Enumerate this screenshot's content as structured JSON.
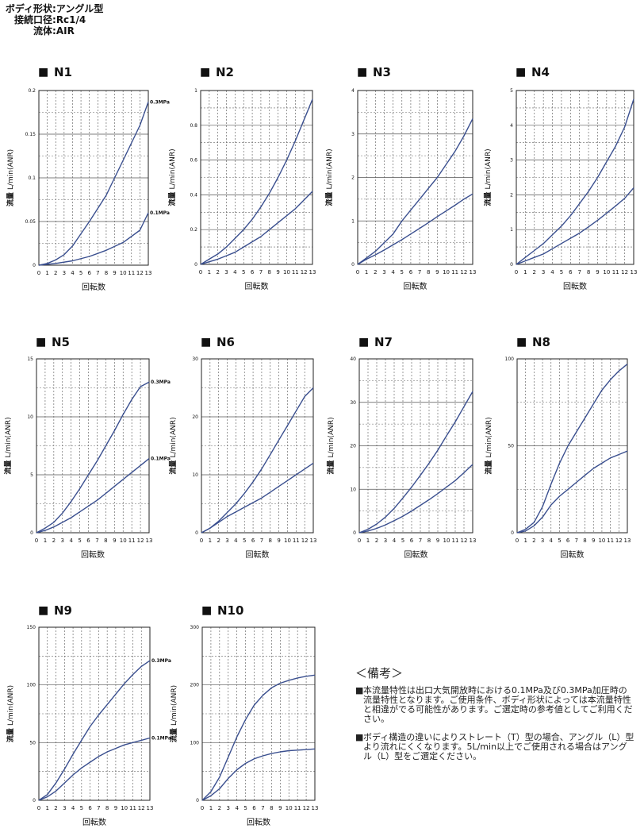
{
  "header": {
    "lines": [
      {
        "label": "ボディ形状",
        "value": "アングル型"
      },
      {
        "label": "接続口径",
        "value": "Rc1/4"
      },
      {
        "label": "流体",
        "value": "AIR"
      }
    ]
  },
  "common": {
    "xlabel": "回転数",
    "ylabel_main": "流量",
    "ylabel_unit": "L/min(ANR)",
    "title_marker": "■",
    "line_color": "#3a4f8f",
    "xticks": [
      0,
      1,
      2,
      3,
      4,
      5,
      6,
      7,
      8,
      9,
      10,
      11,
      12,
      13
    ]
  },
  "chart_data": [
    {
      "type": "line",
      "title": "N1",
      "ylim": [
        0,
        0.2
      ],
      "yticks": [
        "0",
        "0.05",
        "0.1",
        "0.15",
        "0.2"
      ],
      "series": [
        {
          "name": "0.3MPa",
          "label": "0.3MPa",
          "x": [
            0,
            1,
            2,
            3,
            4,
            5,
            6,
            7,
            8,
            9,
            10,
            11,
            12,
            13
          ],
          "y": [
            0,
            0.002,
            0.006,
            0.012,
            0.022,
            0.036,
            0.05,
            0.065,
            0.08,
            0.1,
            0.12,
            0.14,
            0.16,
            0.187
          ]
        },
        {
          "name": "0.1MPa",
          "label": "0.1MPa",
          "x": [
            0,
            2,
            4,
            6,
            8,
            10,
            12,
            13
          ],
          "y": [
            0,
            0.002,
            0.005,
            0.01,
            0.017,
            0.026,
            0.04,
            0.06
          ]
        }
      ]
    },
    {
      "type": "line",
      "title": "N2",
      "ylim": [
        0,
        1
      ],
      "yticks": [
        "0",
        "0.2",
        "0.4",
        "0.6",
        "0.8",
        "1"
      ],
      "series": [
        {
          "name": "0.3MPa",
          "label": "",
          "x": [
            0,
            1,
            2,
            3,
            4,
            5,
            6,
            7,
            8,
            9,
            10,
            11,
            12,
            13
          ],
          "y": [
            0,
            0.03,
            0.06,
            0.1,
            0.15,
            0.2,
            0.26,
            0.33,
            0.41,
            0.5,
            0.6,
            0.71,
            0.83,
            0.95
          ]
        },
        {
          "name": "0.1MPa",
          "label": "",
          "x": [
            0,
            1,
            2,
            3,
            4,
            5,
            6,
            7,
            8,
            9,
            10,
            11,
            12,
            13
          ],
          "y": [
            0,
            0.015,
            0.03,
            0.05,
            0.07,
            0.1,
            0.13,
            0.16,
            0.2,
            0.24,
            0.28,
            0.32,
            0.37,
            0.42
          ]
        }
      ]
    },
    {
      "type": "line",
      "title": "N3",
      "ylim": [
        0,
        4
      ],
      "yticks": [
        "0",
        "1",
        "2",
        "3",
        "4"
      ],
      "series": [
        {
          "name": "0.3MPa",
          "label": "",
          "x": [
            0,
            1,
            2,
            3,
            4,
            5,
            6,
            7,
            8,
            9,
            10,
            11,
            12,
            13
          ],
          "y": [
            0,
            0.15,
            0.3,
            0.5,
            0.7,
            1.0,
            1.25,
            1.5,
            1.75,
            2.0,
            2.3,
            2.6,
            2.95,
            3.35
          ]
        },
        {
          "name": "0.1MPa",
          "label": "",
          "x": [
            0,
            1,
            2,
            3,
            4,
            5,
            6,
            7,
            8,
            9,
            10,
            11,
            12,
            13
          ],
          "y": [
            0,
            0.12,
            0.22,
            0.33,
            0.45,
            0.57,
            0.7,
            0.83,
            0.96,
            1.1,
            1.23,
            1.36,
            1.5,
            1.62
          ]
        }
      ]
    },
    {
      "type": "line",
      "title": "N4",
      "ylim": [
        0,
        5
      ],
      "yticks": [
        "0",
        "1",
        "2",
        "3",
        "4",
        "5"
      ],
      "series": [
        {
          "name": "0.3MPa",
          "label": "",
          "x": [
            0,
            1,
            2,
            3,
            4,
            5,
            6,
            7,
            8,
            9,
            10,
            11,
            12,
            13
          ],
          "y": [
            0,
            0.2,
            0.4,
            0.6,
            0.85,
            1.1,
            1.4,
            1.75,
            2.1,
            2.5,
            2.95,
            3.4,
            3.95,
            4.75
          ]
        },
        {
          "name": "0.1MPa",
          "label": "",
          "x": [
            0,
            1,
            2,
            3,
            4,
            5,
            6,
            7,
            8,
            9,
            10,
            11,
            12,
            13
          ],
          "y": [
            0,
            0.1,
            0.2,
            0.3,
            0.45,
            0.6,
            0.75,
            0.9,
            1.08,
            1.27,
            1.47,
            1.68,
            1.9,
            2.2
          ]
        }
      ]
    },
    {
      "type": "line",
      "title": "N5",
      "ylim": [
        0,
        15
      ],
      "yticks": [
        "0",
        "5",
        "10",
        "15"
      ],
      "series": [
        {
          "name": "0.3MPa",
          "label": "0.3MPa",
          "x": [
            0,
            1,
            2,
            3,
            4,
            5,
            6,
            7,
            8,
            9,
            10,
            11,
            12,
            13
          ],
          "y": [
            0,
            0.4,
            0.9,
            1.7,
            2.7,
            3.8,
            5.0,
            6.2,
            7.5,
            8.8,
            10.2,
            11.5,
            12.6,
            13.0
          ]
        },
        {
          "name": "0.1MPa",
          "label": "0.1MPa",
          "x": [
            0,
            1,
            2,
            3,
            4,
            5,
            6,
            7,
            8,
            9,
            10,
            11,
            12,
            13
          ],
          "y": [
            0,
            0.2,
            0.5,
            0.9,
            1.3,
            1.8,
            2.3,
            2.8,
            3.4,
            4.0,
            4.6,
            5.2,
            5.8,
            6.4
          ]
        }
      ]
    },
    {
      "type": "line",
      "title": "N6",
      "ylim": [
        0,
        30
      ],
      "yticks": [
        "0",
        "10",
        "20",
        "30"
      ],
      "series": [
        {
          "name": "0.3MPa",
          "label": "",
          "x": [
            0,
            1,
            2,
            3,
            4,
            5,
            6,
            7,
            8,
            9,
            10,
            11,
            12,
            13
          ],
          "y": [
            0,
            0.8,
            2.0,
            3.5,
            5.0,
            6.8,
            8.8,
            11.0,
            13.5,
            16.0,
            18.5,
            21.0,
            23.5,
            25.0
          ]
        },
        {
          "name": "0.1MPa",
          "label": "",
          "x": [
            0,
            1,
            2,
            3,
            4,
            5,
            6,
            7,
            8,
            9,
            10,
            11,
            12,
            13
          ],
          "y": [
            0,
            0.8,
            1.8,
            2.8,
            3.6,
            4.4,
            5.2,
            6.0,
            7.0,
            8.0,
            9.0,
            10.0,
            11.0,
            12.0
          ]
        }
      ]
    },
    {
      "type": "line",
      "title": "N7",
      "ylim": [
        0,
        40
      ],
      "yticks": [
        "0",
        "10",
        "20",
        "30",
        "40"
      ],
      "series": [
        {
          "name": "0.3MPa",
          "label": "",
          "x": [
            0,
            1,
            2,
            3,
            4,
            5,
            6,
            7,
            8,
            9,
            10,
            11,
            12,
            13
          ],
          "y": [
            0,
            0.8,
            2.0,
            3.6,
            5.6,
            8.0,
            10.5,
            13.2,
            16.0,
            19.0,
            22.3,
            25.5,
            29.0,
            32.5
          ]
        },
        {
          "name": "0.1MPa",
          "label": "",
          "x": [
            0,
            1,
            2,
            3,
            4,
            5,
            6,
            7,
            8,
            9,
            10,
            11,
            12,
            13
          ],
          "y": [
            0,
            0.4,
            1.0,
            1.8,
            2.8,
            3.8,
            5.0,
            6.3,
            7.6,
            9.0,
            10.5,
            12.0,
            13.8,
            15.7
          ]
        }
      ]
    },
    {
      "type": "line",
      "title": "N8",
      "ylim": [
        0,
        100
      ],
      "yticks": [
        "0",
        "50",
        "100"
      ],
      "series": [
        {
          "name": "0.3MPa",
          "label": "",
          "x": [
            0,
            1,
            2,
            3,
            4,
            5,
            6,
            7,
            8,
            9,
            10,
            11,
            12,
            13
          ],
          "y": [
            0,
            2,
            6,
            15,
            28,
            40,
            50,
            58,
            66,
            74,
            82,
            88,
            93,
            97
          ]
        },
        {
          "name": "0.1MPa",
          "label": "",
          "x": [
            0,
            1,
            2,
            3,
            4,
            5,
            6,
            7,
            8,
            9,
            10,
            11,
            12,
            13
          ],
          "y": [
            0,
            1,
            4,
            9,
            16,
            21,
            25,
            29,
            33,
            37,
            40,
            43,
            45,
            47
          ]
        }
      ]
    },
    {
      "type": "line",
      "title": "N9",
      "ylim": [
        0,
        150
      ],
      "yticks": [
        "0",
        "50",
        "100",
        "150"
      ],
      "series": [
        {
          "name": "0.3MPa",
          "label": "0.3MPa",
          "x": [
            0,
            1,
            2,
            3,
            4,
            5,
            6,
            7,
            8,
            9,
            10,
            11,
            12,
            13
          ],
          "y": [
            0,
            5,
            15,
            27,
            40,
            52,
            64,
            74,
            83,
            92,
            101,
            109,
            116,
            121
          ]
        },
        {
          "name": "0.1MPa",
          "label": "0.1MPa",
          "x": [
            0,
            1,
            2,
            3,
            4,
            5,
            6,
            7,
            8,
            9,
            10,
            11,
            12,
            13
          ],
          "y": [
            0,
            3,
            8,
            15,
            22,
            28,
            33,
            38,
            42,
            45,
            48,
            50,
            52,
            54
          ]
        }
      ]
    },
    {
      "type": "line",
      "title": "N10",
      "ylim": [
        0,
        300
      ],
      "yticks": [
        "0",
        "100",
        "200",
        "300"
      ],
      "series": [
        {
          "name": "0.3MPa",
          "label": "",
          "x": [
            0,
            1,
            2,
            3,
            4,
            5,
            6,
            7,
            8,
            9,
            10,
            11,
            12,
            13
          ],
          "y": [
            0,
            15,
            40,
            75,
            110,
            140,
            165,
            182,
            195,
            203,
            208,
            212,
            215,
            217
          ]
        },
        {
          "name": "0.1MPa",
          "label": "",
          "x": [
            0,
            1,
            2,
            3,
            4,
            5,
            6,
            7,
            8,
            9,
            10,
            11,
            12,
            13
          ],
          "y": [
            0,
            8,
            20,
            38,
            53,
            64,
            72,
            77,
            81,
            84,
            86,
            87,
            88,
            89
          ]
        }
      ]
    }
  ],
  "notes": {
    "title": "＜備考＞",
    "bullet": "■",
    "items": [
      "本流量特性は出口大気開放時における0.1MPa及び0.3MPa加圧時の流量特性となります。ご使用条件、ボディ形状によっては本流量特性と相違がでる可能性があります。ご選定時の参考値としてご利用ください。",
      "ボディ構造の違いによりストレート（T）型の場合、アングル（L）型より流れにくくなります。5L/min以上でご使用される場合はアングル（L）型をご選定ください。"
    ]
  }
}
